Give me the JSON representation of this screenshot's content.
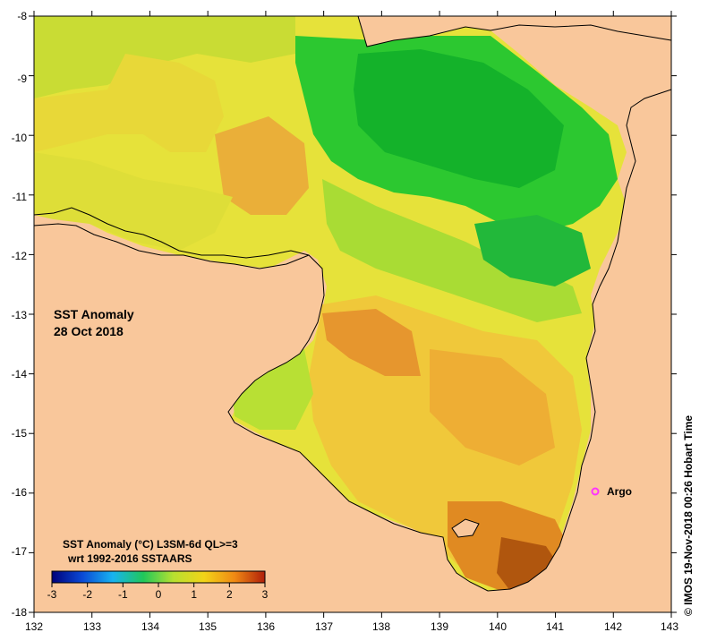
{
  "map": {
    "title_line1": "SST Anomaly",
    "title_line2": "28 Oct 2018",
    "x_ticks": [
      "132",
      "133",
      "134",
      "135",
      "136",
      "137",
      "138",
      "139",
      "140",
      "141",
      "142",
      "143"
    ],
    "y_ticks": [
      "-8",
      "-9",
      "-10",
      "-11",
      "-12",
      "-13",
      "-14",
      "-15",
      "-16",
      "-17",
      "-18"
    ],
    "marker_label": "Argo",
    "marker_color": "#ff33ff",
    "land_color": "#f9c79b",
    "colors": {
      "green": "#22c522",
      "yellow": "#f0e636",
      "orange": "#f09a22",
      "dark_orange": "#b85a0c"
    }
  },
  "legend": {
    "line1": "SST Anomaly (°C) L3SM-6d QL>=3",
    "line2": "wrt 1992-2016 SSTAARS",
    "ticks": [
      "-3",
      "-2",
      "-1",
      "0",
      "1",
      "2",
      "3"
    ],
    "colors": [
      "#00007a",
      "#0a4ad6",
      "#18b3f0",
      "#20c85a",
      "#b8e030",
      "#f2d418",
      "#f08a14",
      "#b01e0a"
    ]
  },
  "credit": "© IMOS 19-Nov-2018 00:26 Hobart Time"
}
